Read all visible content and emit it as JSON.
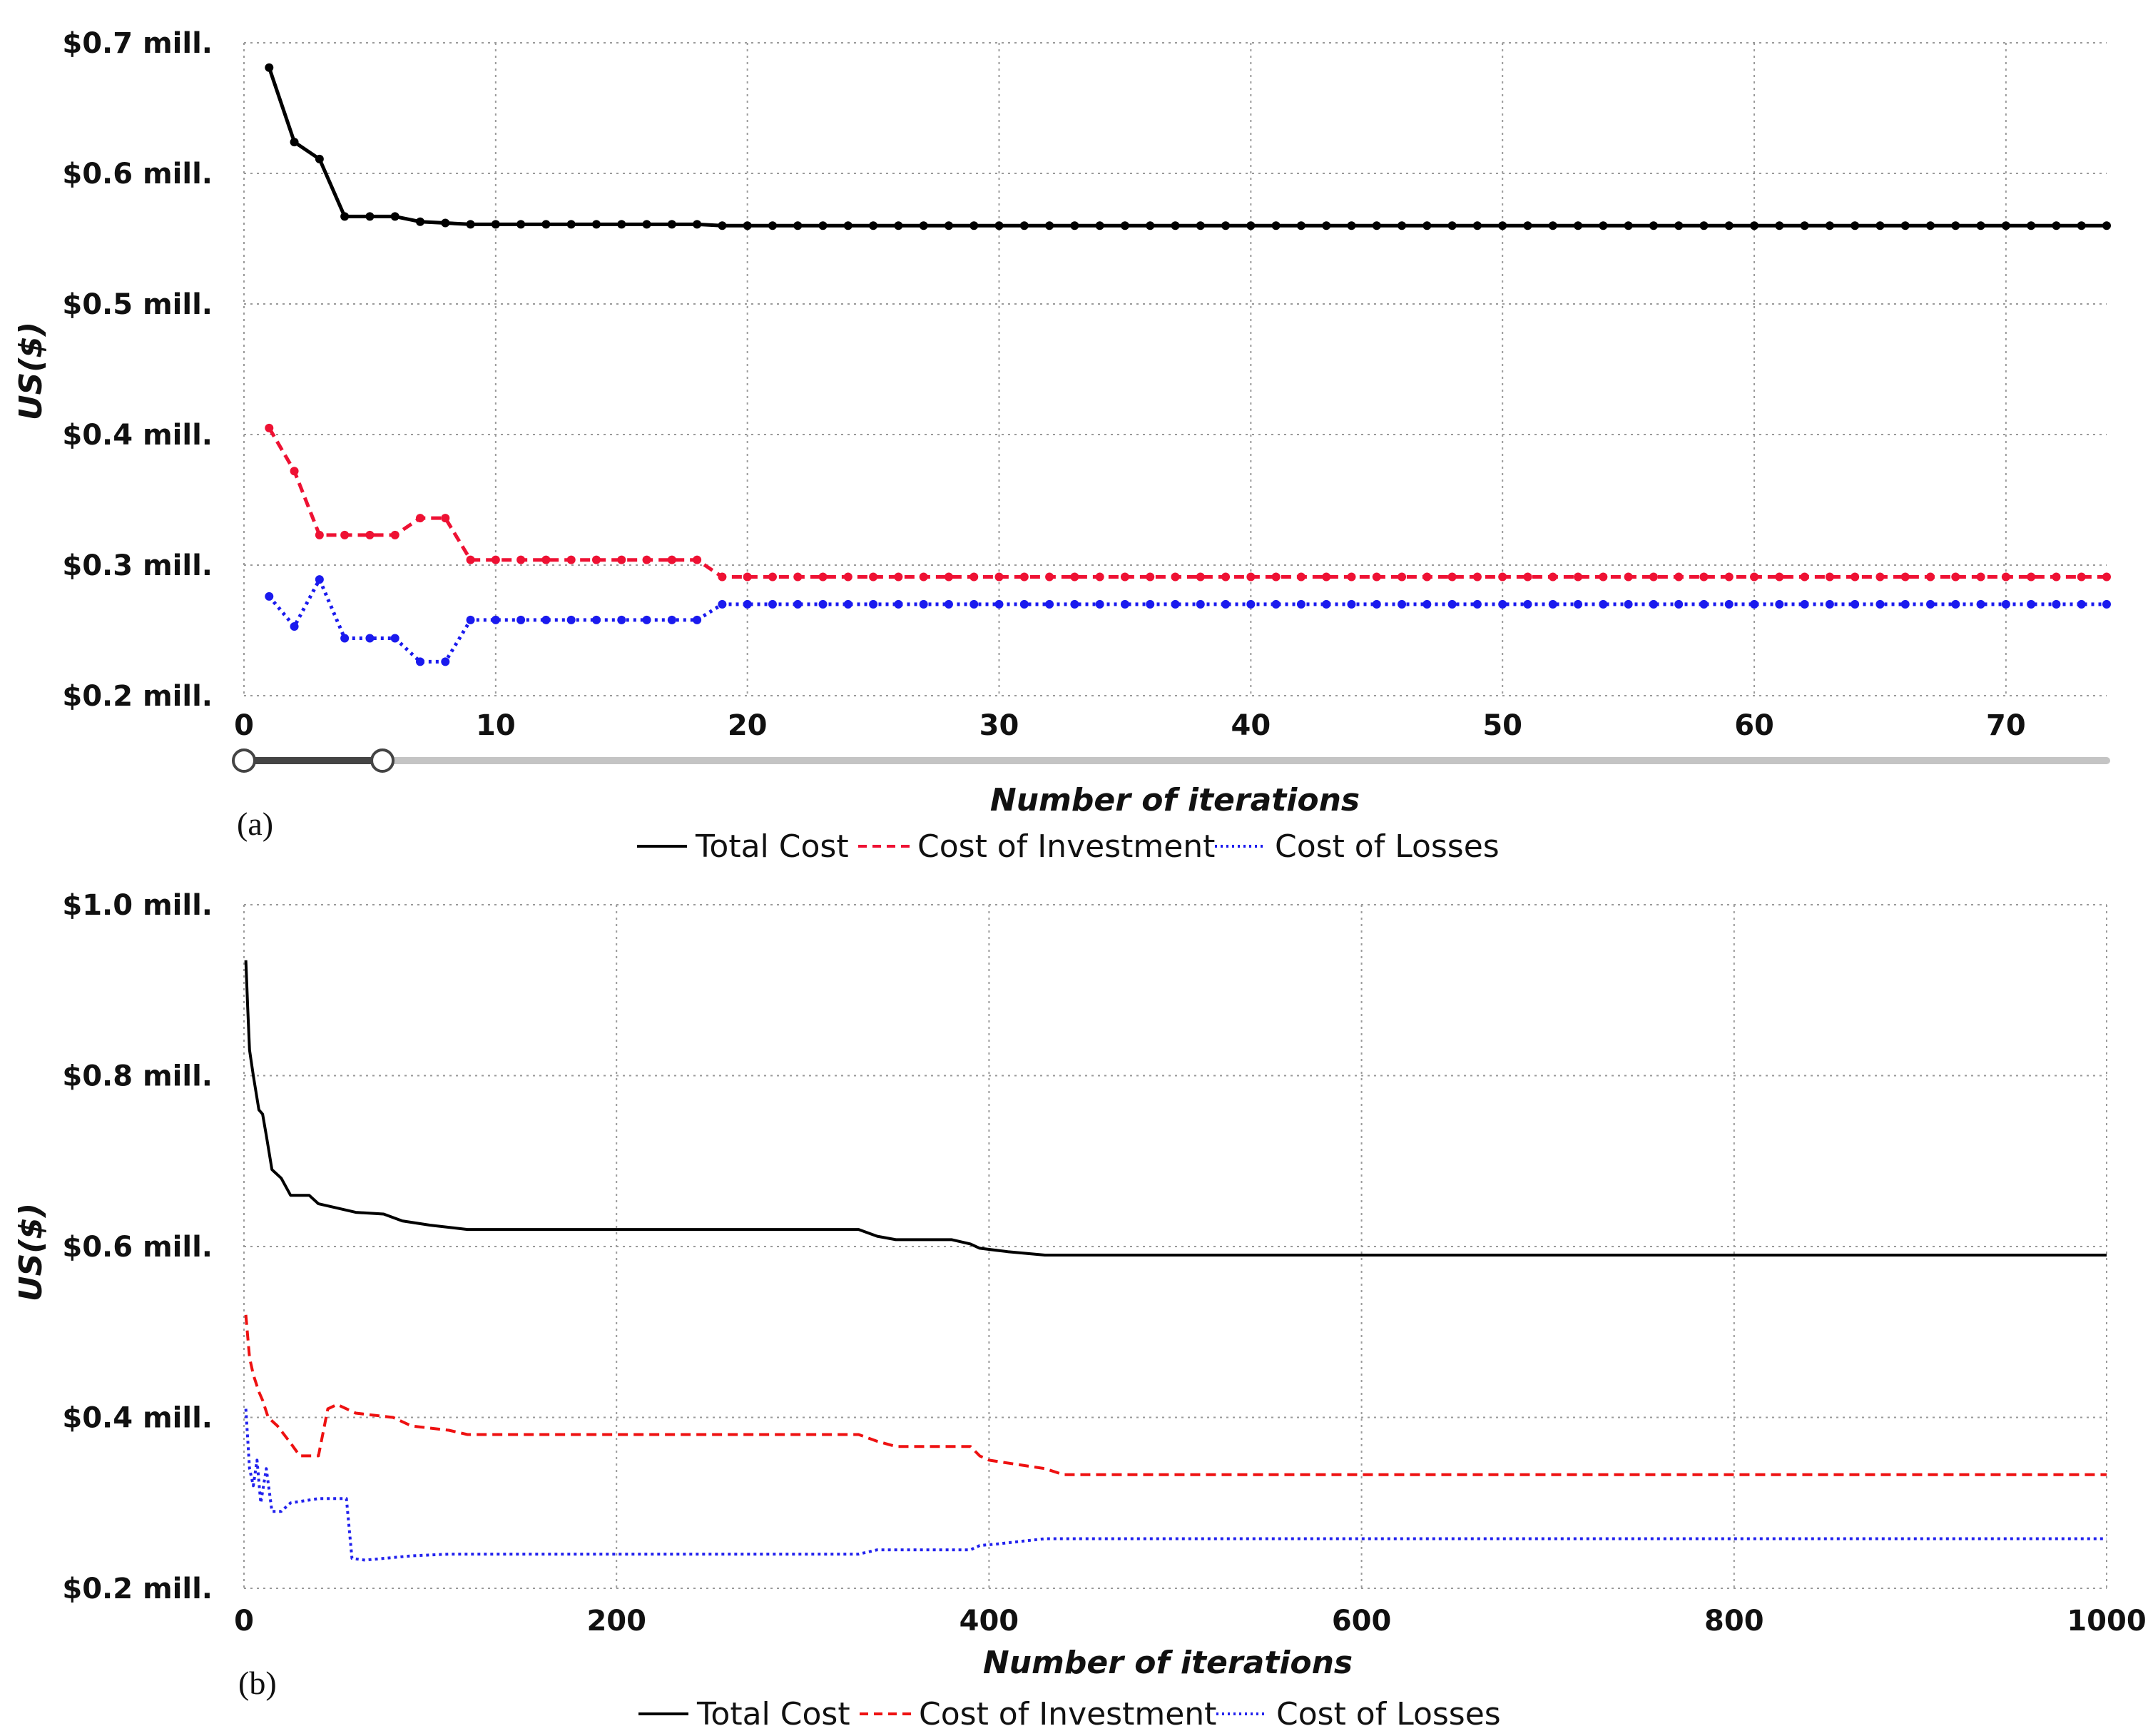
{
  "chart_data": [
    {
      "type": "line",
      "panel_label": "(a)",
      "xlabel": "Number of iterations",
      "ylabel": "US($)",
      "xlim": [
        0,
        74
      ],
      "ylim": [
        0.2,
        0.7
      ],
      "x_ticks": [
        0,
        10,
        20,
        30,
        40,
        50,
        60,
        70
      ],
      "y_ticks": [
        {
          "value": 0.2,
          "label": "$0.2 mill."
        },
        {
          "value": 0.3,
          "label": "$0.3 mill."
        },
        {
          "value": 0.4,
          "label": "$0.4 mill."
        },
        {
          "value": 0.5,
          "label": "$0.5 mill."
        },
        {
          "value": 0.6,
          "label": "$0.6 mill."
        },
        {
          "value": 0.7,
          "label": "$0.7 mill."
        }
      ],
      "range_slider": {
        "start_iteration": 0,
        "end_iteration": 5.5
      },
      "legend": [
        "Total Cost",
        "Cost of Investment",
        "Cost of Losses"
      ],
      "series": [
        {
          "name": "Total Cost",
          "color": "#000000",
          "style": "solid",
          "markers": true,
          "points": [
            [
              1,
              0.681
            ],
            [
              2,
              0.624
            ],
            [
              3,
              0.611
            ],
            [
              4,
              0.567
            ],
            [
              5,
              0.567
            ],
            [
              6,
              0.567
            ],
            [
              7,
              0.563
            ],
            [
              8,
              0.562
            ],
            [
              9,
              0.561
            ],
            [
              18,
              0.561
            ],
            [
              19,
              0.56
            ],
            [
              74,
              0.56
            ]
          ]
        },
        {
          "name": "Cost of Investment",
          "color": "#ee1133",
          "style": "dashed",
          "markers": true,
          "points": [
            [
              1,
              0.405
            ],
            [
              2,
              0.372
            ],
            [
              3,
              0.323
            ],
            [
              4,
              0.323
            ],
            [
              5,
              0.323
            ],
            [
              6,
              0.323
            ],
            [
              7,
              0.336
            ],
            [
              8,
              0.336
            ],
            [
              9,
              0.304
            ],
            [
              18,
              0.304
            ],
            [
              19,
              0.291
            ],
            [
              74,
              0.291
            ]
          ]
        },
        {
          "name": "Cost of Losses",
          "color": "#1a1aee",
          "style": "dotted",
          "markers": true,
          "points": [
            [
              1,
              0.276
            ],
            [
              2,
              0.253
            ],
            [
              3,
              0.289
            ],
            [
              4,
              0.244
            ],
            [
              5,
              0.244
            ],
            [
              6,
              0.244
            ],
            [
              7,
              0.226
            ],
            [
              8,
              0.226
            ],
            [
              9,
              0.258
            ],
            [
              18,
              0.258
            ],
            [
              19,
              0.27
            ],
            [
              74,
              0.27
            ]
          ]
        }
      ]
    },
    {
      "type": "line",
      "panel_label": "(b)",
      "xlabel": "Number of iterations",
      "ylabel": "US($)",
      "xlim": [
        0,
        1000
      ],
      "ylim": [
        0.2,
        1.0
      ],
      "x_ticks": [
        0,
        200,
        400,
        600,
        800,
        1000
      ],
      "y_ticks": [
        {
          "value": 0.2,
          "label": "$0.2 mill."
        },
        {
          "value": 0.4,
          "label": "$0.4 mill."
        },
        {
          "value": 0.6,
          "label": "$0.6 mill."
        },
        {
          "value": 0.8,
          "label": "$0.8 mill."
        },
        {
          "value": 1.0,
          "label": "$1.0 mill."
        }
      ],
      "legend": [
        "Total Cost",
        "Cost of Investment",
        "Cost of Losses"
      ],
      "series": [
        {
          "name": "Total Cost",
          "color": "#000000",
          "style": "solid",
          "markers": false,
          "points": [
            [
              1,
              0.935
            ],
            [
              2,
              0.88
            ],
            [
              3,
              0.83
            ],
            [
              5,
              0.8
            ],
            [
              8,
              0.76
            ],
            [
              10,
              0.755
            ],
            [
              12,
              0.73
            ],
            [
              15,
              0.69
            ],
            [
              20,
              0.68
            ],
            [
              25,
              0.66
            ],
            [
              35,
              0.66
            ],
            [
              40,
              0.65
            ],
            [
              50,
              0.645
            ],
            [
              60,
              0.64
            ],
            [
              75,
              0.638
            ],
            [
              85,
              0.63
            ],
            [
              100,
              0.625
            ],
            [
              120,
              0.62
            ],
            [
              330,
              0.62
            ],
            [
              340,
              0.612
            ],
            [
              350,
              0.608
            ],
            [
              380,
              0.608
            ],
            [
              390,
              0.603
            ],
            [
              395,
              0.598
            ],
            [
              410,
              0.594
            ],
            [
              420,
              0.592
            ],
            [
              430,
              0.59
            ],
            [
              1000,
              0.59
            ]
          ]
        },
        {
          "name": "Cost of Investment",
          "color": "#ee1111",
          "style": "dashed",
          "markers": false,
          "points": [
            [
              1,
              0.52
            ],
            [
              3,
              0.47
            ],
            [
              5,
              0.45
            ],
            [
              8,
              0.43
            ],
            [
              10,
              0.42
            ],
            [
              13,
              0.4
            ],
            [
              18,
              0.39
            ],
            [
              25,
              0.37
            ],
            [
              30,
              0.355
            ],
            [
              40,
              0.355
            ],
            [
              45,
              0.41
            ],
            [
              50,
              0.415
            ],
            [
              60,
              0.405
            ],
            [
              80,
              0.4
            ],
            [
              90,
              0.39
            ],
            [
              110,
              0.385
            ],
            [
              120,
              0.38
            ],
            [
              330,
              0.38
            ],
            [
              340,
              0.372
            ],
            [
              350,
              0.366
            ],
            [
              390,
              0.366
            ],
            [
              395,
              0.355
            ],
            [
              400,
              0.35
            ],
            [
              415,
              0.345
            ],
            [
              430,
              0.34
            ],
            [
              440,
              0.333
            ],
            [
              1000,
              0.333
            ]
          ]
        },
        {
          "name": "Cost of Losses",
          "color": "#2222ee",
          "style": "dotted",
          "markers": false,
          "points": [
            [
              1,
              0.41
            ],
            [
              3,
              0.34
            ],
            [
              5,
              0.32
            ],
            [
              7,
              0.35
            ],
            [
              9,
              0.3
            ],
            [
              12,
              0.34
            ],
            [
              15,
              0.29
            ],
            [
              20,
              0.29
            ],
            [
              25,
              0.3
            ],
            [
              40,
              0.305
            ],
            [
              55,
              0.305
            ],
            [
              58,
              0.235
            ],
            [
              65,
              0.233
            ],
            [
              90,
              0.238
            ],
            [
              110,
              0.24
            ],
            [
              330,
              0.24
            ],
            [
              340,
              0.245
            ],
            [
              390,
              0.245
            ],
            [
              395,
              0.25
            ],
            [
              405,
              0.252
            ],
            [
              430,
              0.258
            ],
            [
              1000,
              0.258
            ]
          ]
        }
      ]
    }
  ]
}
